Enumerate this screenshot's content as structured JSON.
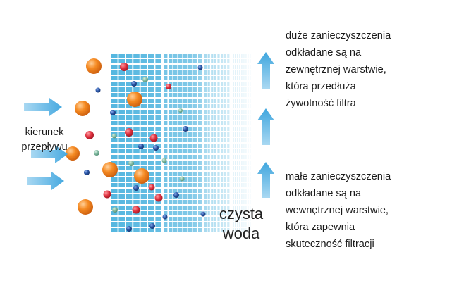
{
  "flow_label": [
    "kierunek",
    "przepływu"
  ],
  "clean_water_label": [
    "czysta",
    "woda"
  ],
  "large_particles_note": [
    "duże zanieczyszczenia",
    "odkładane są na",
    "zewnętrznej warstwie,",
    "która przedłuża",
    "żywotność filtra"
  ],
  "small_particles_note": [
    "małe zanieczyszczenia",
    "odkładane są na",
    "wewnętrznej warstwie,",
    "która zapewnia",
    "skuteczność filtracji"
  ],
  "colors": {
    "filter_blue": "#4cb3de",
    "arrow_blue": "#5ab4e5",
    "large_particle": "#f28a26",
    "medium_particle": "#e0313f",
    "small_particle": "#2b56a6",
    "tiny_particle": "#7fb8a0"
  },
  "icons": {
    "inflow_arrow": "right-arrow-icon",
    "outflow_arrow": "up-arrow-icon"
  }
}
